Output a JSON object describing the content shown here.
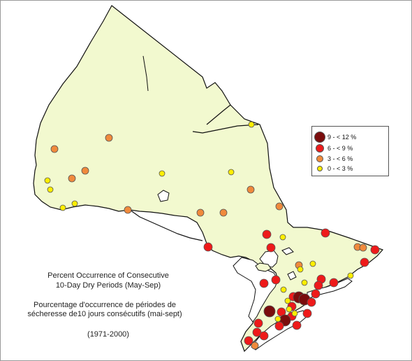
{
  "caption": {
    "title_en_1": "Percent Occurrence of Consecutive",
    "title_en_2": "10-Day Dry Periods  (May-Sep)",
    "title_fr_1": "Pourcentage d'occurrence de périodes de",
    "title_fr_2": "sécheresse de10 jours consécutifs (mai-sept)",
    "years": "(1971-2000)"
  },
  "legend": [
    {
      "label": "9 - < 12 %",
      "color": "#7a0d0d",
      "size": 16
    },
    {
      "label": "6 - < 9 %",
      "color": "#ee1a1a",
      "size": 12
    },
    {
      "label": "3 - < 6 %",
      "color": "#f08a3c",
      "size": 10
    },
    {
      "label": "0 - < 3 %",
      "color": "#ffee00",
      "size": 8
    }
  ],
  "colors": {
    "land": "#f2f9cf",
    "outline": "#111111",
    "water": "#ffffff"
  }
}
